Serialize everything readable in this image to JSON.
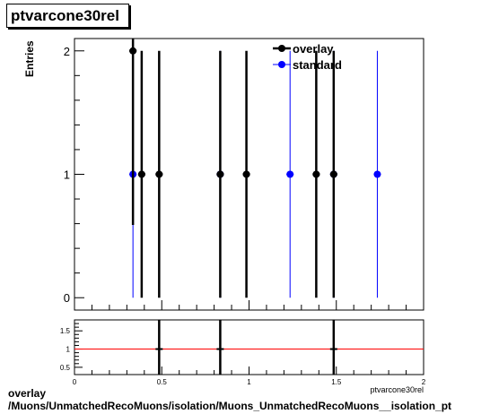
{
  "title": "ptvarcone30rel",
  "footer": {
    "line1": "overlay",
    "line2": "/Muons/UnmatchedRecoMuons/isolation/Muons_UnmatchedRecoMuons__isolation_pt"
  },
  "colors": {
    "overlay": "#000000",
    "standard": "#0000ff",
    "ratio_line": "#ff0000"
  },
  "chart_data": [
    {
      "type": "scatter",
      "title": "ptvarcone30rel",
      "ylabel": "Entries",
      "xlabel": "ptvarcone30rel",
      "xlim": [
        0,
        2
      ],
      "ylim": [
        -0.1,
        2.1
      ],
      "yticks": [
        0,
        1,
        2
      ],
      "grid": false,
      "legend_position": "top-right",
      "series": [
        {
          "name": "overlay",
          "color": "#000000",
          "x": [
            0.335,
            0.385,
            0.485,
            0.835,
            0.985,
            1.385,
            1.485
          ],
          "y": [
            2,
            1,
            1,
            1,
            1,
            1,
            1
          ],
          "yerr": [
            1.41,
            1,
            1,
            1,
            1,
            1,
            1
          ]
        },
        {
          "name": "standard",
          "color": "#0000ff",
          "x": [
            0.335,
            0.835,
            1.235,
            1.485,
            1.735
          ],
          "y": [
            1,
            1,
            1,
            1,
            1
          ],
          "yerr": [
            1,
            1,
            1,
            1,
            1
          ]
        }
      ]
    },
    {
      "type": "line",
      "xlabel": "ptvarcone30rel",
      "xlim": [
        0,
        2
      ],
      "ylim": [
        0.3,
        1.8
      ],
      "yticks": [
        "0.5",
        "1",
        "1.5"
      ],
      "xticks": [
        "0",
        "0.5",
        "1",
        "1.5",
        "2"
      ],
      "reference_line": 1,
      "reference_color": "#ff0000",
      "points": {
        "x": [
          0.485,
          0.835,
          1.485
        ],
        "y": [
          1,
          1,
          1
        ]
      }
    }
  ]
}
